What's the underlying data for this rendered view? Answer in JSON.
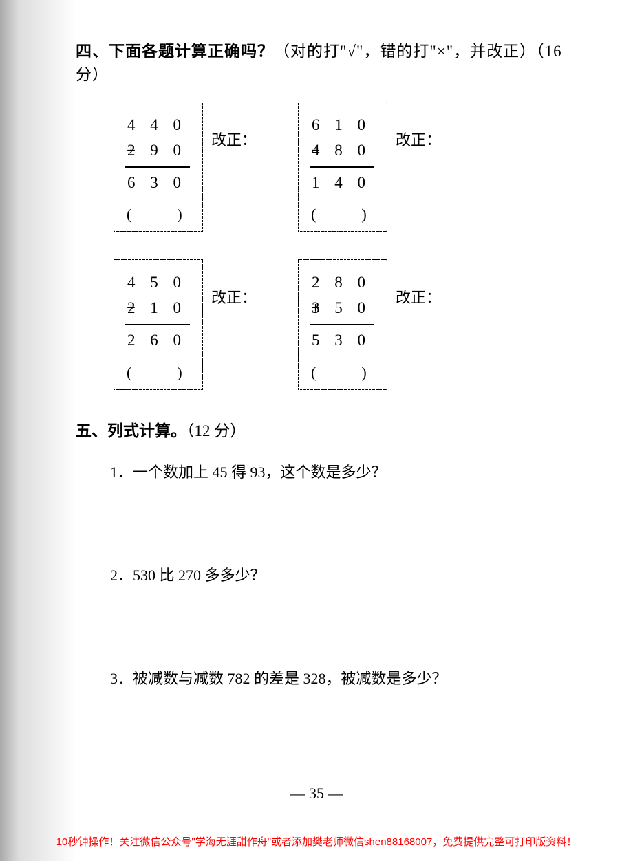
{
  "section4": {
    "heading_bold": "四、下面各题计算正确吗？",
    "heading_rest": "（对的打\"√\"，错的打\"×\"，并改正）（16 分）",
    "correct_label": "改正：",
    "paren": "(　　　)",
    "problems": [
      {
        "a": "4 4 0",
        "op": "+",
        "b": "2 9 0",
        "result": "6 3 0"
      },
      {
        "a": "6 1 0",
        "op": "−",
        "b": "4 8 0",
        "result": "1 4 0"
      },
      {
        "a": "4 5 0",
        "op": "+",
        "b": "2 1 0",
        "result": "2 6 0"
      },
      {
        "a": "2 8 0",
        "op": "+",
        "b": "3 5 0",
        "result": "5 3 0"
      }
    ]
  },
  "section5": {
    "heading_bold": "五、列式计算。",
    "heading_rest": "（12 分）",
    "questions": [
      "1．一个数加上 45 得 93，这个数是多少？",
      "2．530 比 270 多多少？",
      "3．被减数与减数 782 的差是 328，被减数是多少？"
    ]
  },
  "page_number": "— 35 —",
  "footer": "10秒钟操作！关注微信公众号\"学海无涯甜作舟\"或者添加樊老师微信shen88168007，免费提供完整可打印版资料！"
}
